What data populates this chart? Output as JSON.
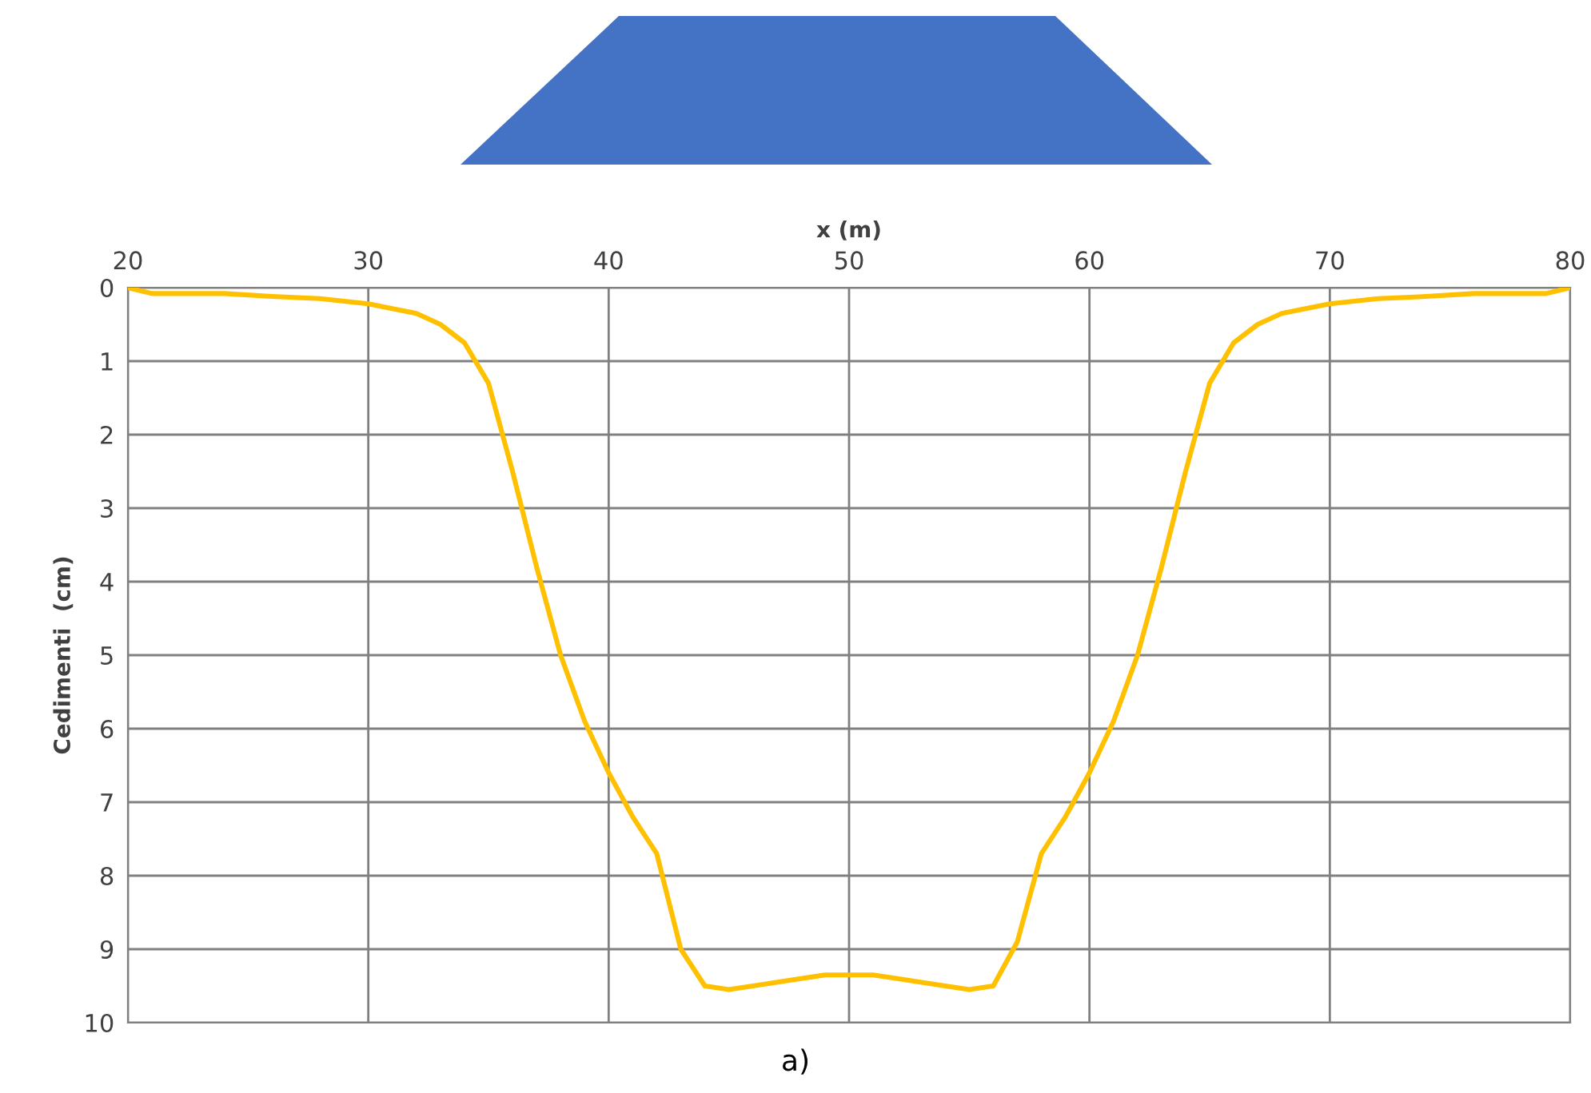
{
  "chart_data": {
    "type": "line",
    "xlabel": "x (m)",
    "ylabel": "Cedimenti  (cm)",
    "x": [
      20,
      21,
      24,
      26,
      28,
      30,
      32,
      33,
      34,
      35,
      36,
      37,
      38,
      39,
      40,
      41,
      42,
      43,
      44,
      45,
      46,
      48,
      49,
      51,
      52,
      54,
      55,
      56,
      57,
      58,
      59,
      60,
      61,
      62,
      63,
      64,
      65,
      66,
      67,
      68,
      70,
      72,
      74,
      76,
      79,
      80
    ],
    "series": [
      {
        "color": "#ffc000",
        "values": [
          0,
          0.08,
          0.08,
          0.12,
          0.15,
          0.22,
          0.35,
          0.5,
          0.75,
          1.3,
          2.5,
          3.8,
          5.0,
          5.9,
          6.6,
          7.2,
          7.7,
          9.0,
          9.5,
          9.55,
          9.5,
          9.4,
          9.35,
          9.35,
          9.4,
          9.5,
          9.55,
          9.5,
          8.9,
          7.7,
          7.2,
          6.6,
          5.9,
          5.0,
          3.8,
          2.5,
          1.3,
          0.75,
          0.5,
          0.35,
          0.22,
          0.15,
          0.12,
          0.08,
          0.08,
          0
        ]
      }
    ],
    "xlim": [
      20,
      80
    ],
    "xticks": [
      20,
      30,
      40,
      50,
      60,
      70,
      80
    ],
    "ylim": [
      10,
      0
    ],
    "yticks": [
      0,
      1,
      2,
      3,
      4,
      5,
      6,
      7,
      8,
      9,
      10
    ],
    "grid": true,
    "marker": "none",
    "line_style": "solid",
    "annotations": [
      "a)"
    ]
  }
}
